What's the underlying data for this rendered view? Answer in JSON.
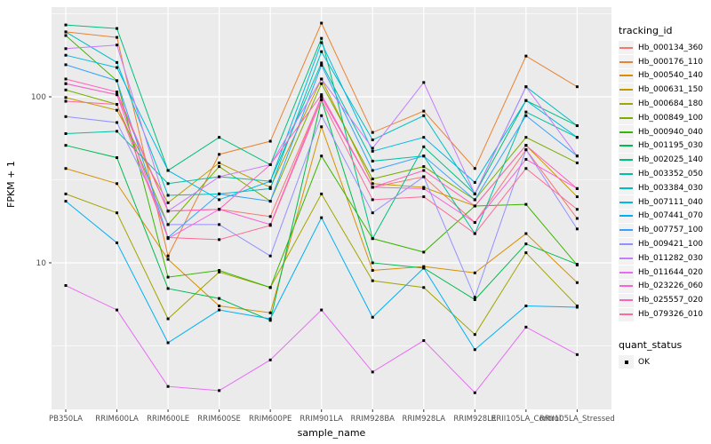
{
  "chart_data": {
    "type": "line",
    "title": "",
    "xlabel": "sample_name",
    "ylabel": "FPKM + 1",
    "y_scale": "log10",
    "ylim": [
      1.31,
      347
    ],
    "y_major_ticks": [
      10,
      100
    ],
    "y_minor_ticks": [
      3.162,
      31.62,
      316.2
    ],
    "grid": "on",
    "panel_bg": "#EBEBEB",
    "grid_color": "#FFFFFF",
    "tick_color": "#333333",
    "tick_label_color": "#4D4D4D",
    "point_marker": "square",
    "point_color": "#000000",
    "legend": {
      "title": "tracking_id",
      "position": "right"
    },
    "quant_legend": {
      "title": "quant_status",
      "items": [
        {
          "label": "OK",
          "marker": "square",
          "color": "#000000"
        }
      ]
    },
    "categories": [
      "PB350LA",
      "RRIM600LA",
      "RRIM600LE",
      "RRIM600SE",
      "RRIM600PE",
      "RRIM901LA",
      "RRIM928BA",
      "RRIM928LA",
      "RRIM928LE",
      "RRII105LA_Control",
      "RRII105LA_Stressed"
    ],
    "series": [
      {
        "name": "Hb_000134_360",
        "color": "#F8766D",
        "values": [
          120,
          103,
          20.5,
          21,
          19,
          100,
          28.5,
          33,
          17.5,
          48,
          18.5
        ]
      },
      {
        "name": "Hb_000176_110",
        "color": "#EA8331",
        "values": [
          246,
          228,
          11,
          45,
          54,
          278,
          61,
          82,
          37,
          176,
          115
        ]
      },
      {
        "name": "Hb_000540_140",
        "color": "#D89000",
        "values": [
          37,
          30,
          10.5,
          5.5,
          5,
          66,
          9,
          9.5,
          8.7,
          15,
          7.6
        ]
      },
      {
        "name": "Hb_000631_150",
        "color": "#C09B00",
        "values": [
          99,
          83,
          23,
          40,
          28.5,
          128,
          30,
          28.5,
          22,
          51,
          25
        ]
      },
      {
        "name": "Hb_000684_180",
        "color": "#A3A500",
        "values": [
          26,
          20,
          4.6,
          8.8,
          7.1,
          26,
          7.8,
          7.1,
          3.7,
          11.5,
          5.5
        ]
      },
      {
        "name": "Hb_000849_100",
        "color": "#7CAE00",
        "values": [
          110,
          90,
          17,
          38,
          23.5,
          120,
          32,
          38,
          24,
          57,
          40
        ]
      },
      {
        "name": "Hb_000940_040",
        "color": "#39B600",
        "values": [
          234,
          125,
          8.2,
          9,
          7.1,
          44,
          14,
          11.6,
          22,
          22.5,
          9.7
        ]
      },
      {
        "name": "Hb_001195_030",
        "color": "#00BB4E",
        "values": [
          51,
          43,
          7,
          6.1,
          4.5,
          96,
          10,
          9.3,
          6,
          13,
          9.8
        ]
      },
      {
        "name": "Hb_002025_140",
        "color": "#00BF7D",
        "values": [
          271,
          258,
          36,
          57,
          39,
          225,
          14,
          50,
          26,
          95,
          67
        ]
      },
      {
        "name": "Hb_003352_050",
        "color": "#00C1A3",
        "values": [
          60,
          62,
          30,
          33,
          31,
          160,
          41,
          44,
          15,
          81,
          57
        ]
      },
      {
        "name": "Hb_003384_030",
        "color": "#00BFC4",
        "values": [
          246,
          161,
          25.5,
          26,
          28,
          187,
          55,
          77,
          26,
          115,
          67
        ]
      },
      {
        "name": "Hb_007111_040",
        "color": "#00BAE0",
        "values": [
          178,
          150,
          36,
          24,
          31,
          212,
          47,
          57,
          30.5,
          95,
          57
        ]
      },
      {
        "name": "Hb_007441_070",
        "color": "#00B0F6",
        "values": [
          23.5,
          13.2,
          3.3,
          5.2,
          4.6,
          18.7,
          4.7,
          9.3,
          3,
          5.5,
          5.4
        ]
      },
      {
        "name": "Hb_007757_100",
        "color": "#35A2FF",
        "values": [
          156,
          125,
          14.2,
          26,
          23.5,
          155,
          36,
          44,
          24,
          77,
          44
        ]
      },
      {
        "name": "Hb_009421_100",
        "color": "#9590FF",
        "values": [
          76,
          70,
          17,
          17,
          11,
          77,
          20,
          33,
          6.2,
          48,
          16
        ]
      },
      {
        "name": "Hb_011282_030",
        "color": "#C77CFF",
        "values": [
          195,
          205,
          20.5,
          33,
          39,
          128,
          49,
          122,
          26,
          115,
          44
        ]
      },
      {
        "name": "Hb_011644_020",
        "color": "#E76BF3",
        "values": [
          7.3,
          5.2,
          1.8,
          1.7,
          2.6,
          5.2,
          2.2,
          3.4,
          1.65,
          4.1,
          2.8
        ]
      },
      {
        "name": "Hb_023226_060",
        "color": "#FA62DB",
        "values": [
          120,
          103,
          14,
          21,
          17,
          100,
          28.5,
          28,
          17.5,
          42,
          28
        ]
      },
      {
        "name": "Hb_025557_020",
        "color": "#FF62BC",
        "values": [
          128,
          107,
          20.5,
          21,
          39,
          103,
          28.5,
          36,
          22,
          51,
          28
        ]
      },
      {
        "name": "Hb_079326_010",
        "color": "#FF6A98",
        "values": [
          94,
          90,
          14.2,
          13.8,
          16.8,
          96,
          24,
          25,
          15,
          37,
          21
        ]
      }
    ]
  }
}
